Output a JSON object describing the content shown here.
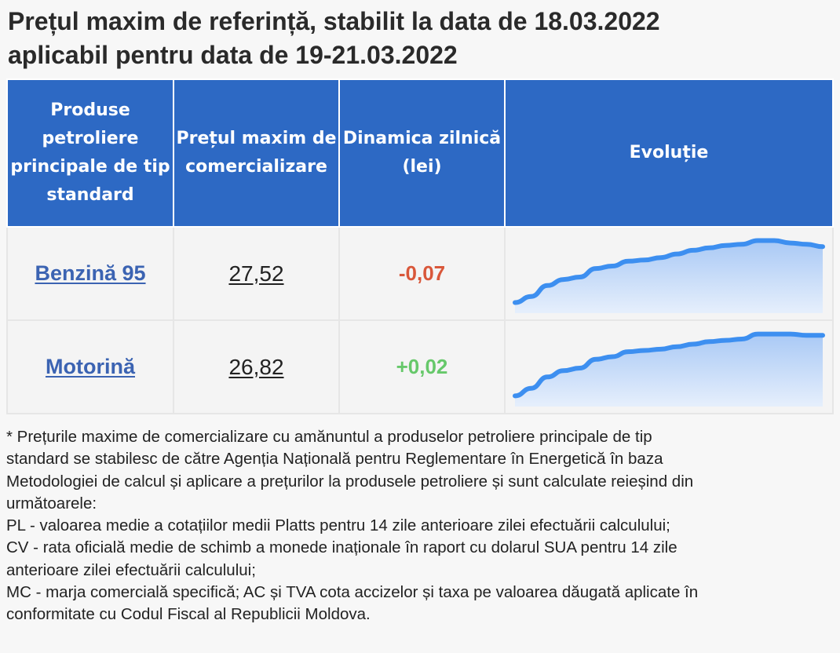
{
  "title_lines": [
    "Prețul maxim de referință, stabilit la data de 18.03.2022",
    "aplicabil pentru data de 19-21.03.2022"
  ],
  "headers": {
    "product": [
      "Produse",
      "petroliere",
      "principale de tip",
      "standard"
    ],
    "price": [
      "Prețul maxim de",
      "comercializare"
    ],
    "delta": [
      "Dinamica zilnică",
      "(lei)"
    ],
    "evolution": "Evoluție"
  },
  "rows": [
    {
      "product": "Benzină 95",
      "price": "27,52",
      "delta": "-0,07",
      "trend": "negative",
      "evolution_series": [
        20.4,
        20.9,
        21.8,
        22.3,
        22.5,
        23.2,
        23.4,
        23.8,
        23.9,
        24.1,
        24.4,
        24.7,
        24.9,
        25.1,
        25.2,
        25.5,
        25.5,
        25.3,
        25.2,
        25.0
      ]
    },
    {
      "product": "Motorină",
      "price": "26,82",
      "delta": "+0,02",
      "trend": "positive",
      "evolution_series": [
        19.6,
        20.2,
        21.1,
        21.6,
        21.8,
        22.5,
        22.7,
        23.1,
        23.2,
        23.3,
        23.5,
        23.7,
        23.9,
        24.0,
        24.1,
        24.5,
        24.5,
        24.5,
        24.4,
        24.4
      ]
    }
  ],
  "colors": {
    "header_bg": "#2d69c4",
    "link": "#3b63b2",
    "negative": "#d9573a",
    "positive": "#66c86a",
    "spark_line": "#3d8ff0"
  },
  "footnote_lines": [
    "* Prețurile maxime de comercializare cu amănuntul a produselor petroliere principale de tip",
    "standard se stabilesc de către Agenția Națională pentru Reglementare în Energetică în baza",
    "Metodologiei de calcul și aplicare a prețurilor la produsele petroliere și sunt calculate reieșind din",
    "următoarele:",
    "PL - valoarea medie a cotațiilor medii Platts pentru 14 zile anterioare zilei efectuării calculului;",
    "CV - rata oficială medie de schimb a monede inaționale în raport cu dolarul SUA pentru 14 zile",
    "anterioare zilei efectuării calculului;",
    "MC - marja comercială specifică; AC și TVA cota accizelor și taxa pe valoarea dăugată aplicate în",
    "conformitate cu Codul Fiscal al Republicii Moldova."
  ]
}
